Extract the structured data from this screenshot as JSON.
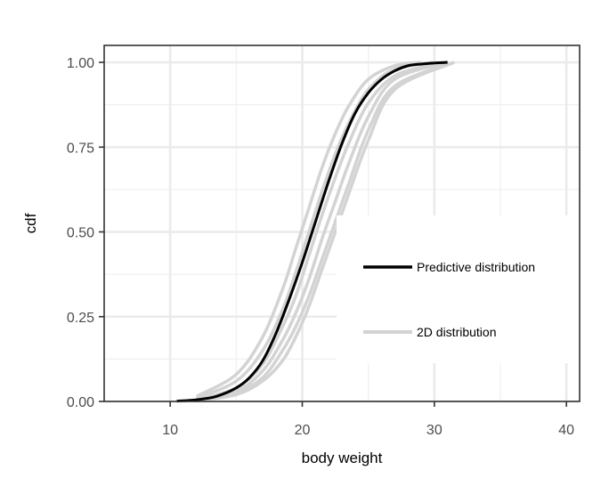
{
  "chart_data": {
    "type": "line",
    "xlabel": "body weight",
    "ylabel": "cdf",
    "xlim": [
      5,
      41
    ],
    "ylim": [
      0,
      1.05
    ],
    "x_ticks": [
      10,
      20,
      30,
      40
    ],
    "x_tick_labels": [
      "10",
      "20",
      "30",
      "40"
    ],
    "y_ticks": [
      0,
      0.25,
      0.5,
      0.75,
      1.0
    ],
    "y_tick_labels": [
      "0.00",
      "0.25",
      "0.50",
      "0.75",
      "1.00"
    ],
    "grid": true,
    "legend_position": "lower-right",
    "legend": [
      {
        "label": "Predictive distribution",
        "color": "#000000"
      },
      {
        "label": "2D distribution",
        "color": "#d3d3d3"
      }
    ],
    "series": [
      {
        "name": "2D distribution",
        "color": "#d3d3d3",
        "x": [
          12,
          15,
          17,
          18.5,
          19.5,
          20.5,
          21.5,
          22.5,
          23.5,
          25,
          27,
          30
        ],
        "y": [
          0.01,
          0.06,
          0.15,
          0.27,
          0.38,
          0.5,
          0.62,
          0.73,
          0.82,
          0.92,
          0.98,
          1.0
        ]
      },
      {
        "name": "2D distribution",
        "color": "#d3d3d3",
        "x": [
          12,
          15,
          17,
          18.5,
          19.5,
          20.5,
          21.5,
          22.5,
          23.5,
          25,
          27,
          30
        ],
        "y": [
          0.005,
          0.04,
          0.11,
          0.22,
          0.31,
          0.43,
          0.55,
          0.66,
          0.76,
          0.88,
          0.96,
          0.995
        ]
      },
      {
        "name": "2D distribution",
        "color": "#d3d3d3",
        "x": [
          12,
          15,
          17,
          18.5,
          19.5,
          20.5,
          21.5,
          22.5,
          23.5,
          25,
          27,
          31
        ],
        "y": [
          0.005,
          0.03,
          0.09,
          0.18,
          0.26,
          0.36,
          0.48,
          0.59,
          0.7,
          0.84,
          0.95,
          1.0
        ]
      },
      {
        "name": "2D distribution",
        "color": "#d3d3d3",
        "x": [
          12,
          15,
          17,
          18.5,
          19.5,
          20.5,
          21.5,
          22.5,
          23.5,
          25,
          27,
          31.5
        ],
        "y": [
          0.003,
          0.025,
          0.07,
          0.15,
          0.22,
          0.31,
          0.42,
          0.53,
          0.64,
          0.8,
          0.93,
          1.0
        ]
      },
      {
        "name": "2D distribution",
        "color": "#d3d3d3",
        "x": [
          12,
          15,
          17,
          18.5,
          19.5,
          20.5,
          21.5,
          22.5,
          23.5,
          25,
          27,
          29
        ],
        "y": [
          0.015,
          0.08,
          0.19,
          0.33,
          0.45,
          0.57,
          0.69,
          0.79,
          0.87,
          0.95,
          0.99,
          1.0
        ]
      },
      {
        "name": "2D distribution",
        "color": "#d3d3d3",
        "x": [
          12,
          15,
          17,
          18.5,
          19.5,
          20.5,
          21.5,
          22.5,
          23.5,
          25,
          27,
          31.5
        ],
        "y": [
          0.002,
          0.02,
          0.06,
          0.12,
          0.19,
          0.28,
          0.39,
          0.5,
          0.61,
          0.77,
          0.92,
          1.0
        ]
      },
      {
        "name": "Predictive distribution",
        "color": "#000000",
        "x": [
          10.5,
          12,
          13.5,
          15,
          16,
          17,
          18,
          19,
          20,
          21,
          22,
          23,
          24,
          25,
          26,
          27,
          28,
          29,
          30,
          31
        ],
        "y": [
          0.001,
          0.005,
          0.015,
          0.04,
          0.07,
          0.12,
          0.2,
          0.3,
          0.41,
          0.53,
          0.65,
          0.76,
          0.85,
          0.91,
          0.95,
          0.975,
          0.99,
          0.995,
          0.998,
          1.0
        ]
      }
    ]
  }
}
